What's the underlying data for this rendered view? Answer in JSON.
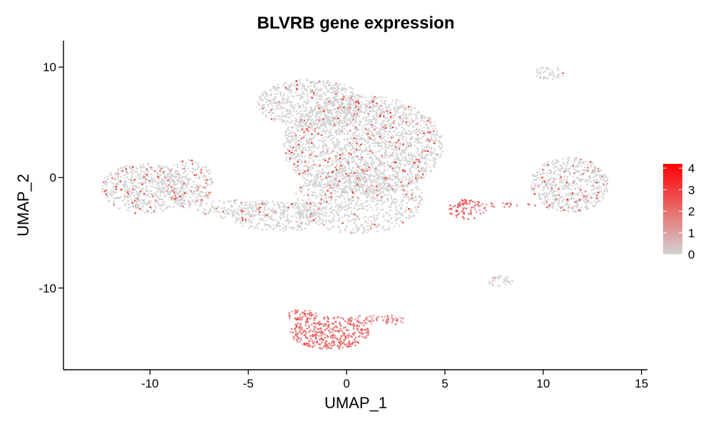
{
  "chart_data": {
    "type": "scatter",
    "title": "BLVRB gene expression",
    "xlabel": "UMAP_1",
    "ylabel": "UMAP_2",
    "xlim": [
      -14.4,
      15.3
    ],
    "ylim": [
      -17.4,
      12.4
    ],
    "xticks": [
      -10,
      -5,
      0,
      5,
      10,
      15
    ],
    "xtick_labels": [
      "-10",
      "-5",
      "0",
      "5",
      "10",
      "15"
    ],
    "yticks": [
      -10,
      0,
      10
    ],
    "ytick_labels": [
      "-10",
      "0",
      "10"
    ],
    "grid": false,
    "legend": {
      "placement": "right",
      "type": "colorbar",
      "min": 0,
      "max": 4.2,
      "ticks": [
        0,
        1,
        2,
        3,
        4
      ],
      "tick_labels": [
        "0",
        "1",
        "2",
        "3",
        "4"
      ],
      "low_color": "#d3d3d3",
      "high_color": "#ff0000"
    },
    "background_point_color": "#d3d3d3",
    "clusters": [
      {
        "name": "main-upper",
        "cx": 0.8,
        "cy": 3.0,
        "rx": 4.1,
        "ry": 4.5,
        "mean_expr": 0.25,
        "density": 0.9
      },
      {
        "name": "main-top-lobe",
        "cx": -1.9,
        "cy": 6.8,
        "rx": 2.7,
        "ry": 2.2,
        "mean_expr": 0.2,
        "density": 0.85
      },
      {
        "name": "main-center",
        "cx": 0.6,
        "cy": -2.0,
        "rx": 3.3,
        "ry": 3.0,
        "mean_expr": 0.15,
        "density": 0.6
      },
      {
        "name": "main-lower-left",
        "cx": -3.5,
        "cy": -3.4,
        "rx": 2.5,
        "ry": 1.4,
        "mean_expr": 0.25,
        "density": 0.75
      },
      {
        "name": "left-cluster",
        "cx": -10.3,
        "cy": -0.9,
        "rx": 2.2,
        "ry": 2.3,
        "mean_expr": 0.3,
        "density": 0.9
      },
      {
        "name": "left-right-lobe",
        "cx": -8.1,
        "cy": -0.5,
        "rx": 1.3,
        "ry": 2.2,
        "mean_expr": 0.25,
        "density": 0.75
      },
      {
        "name": "bridge",
        "cx": -5.8,
        "cy": -2.8,
        "rx": 1.9,
        "ry": 0.9,
        "mean_expr": 0.2,
        "density": 0.5
      },
      {
        "name": "right-cluster",
        "cx": 11.3,
        "cy": -0.6,
        "rx": 2.0,
        "ry": 2.5,
        "mean_expr": 0.3,
        "density": 0.9
      },
      {
        "name": "top-right-small",
        "cx": 10.3,
        "cy": 9.5,
        "rx": 0.8,
        "ry": 0.6,
        "mean_expr": 0.1,
        "density": 0.8
      },
      {
        "name": "mid-right-small",
        "cx": 7.8,
        "cy": -9.3,
        "rx": 0.7,
        "ry": 0.5,
        "mean_expr": 0.1,
        "density": 0.8
      },
      {
        "name": "red-streak",
        "cx": 6.1,
        "cy": -2.8,
        "rx": 1.0,
        "ry": 0.9,
        "mean_expr": 2.2,
        "density": 0.7
      },
      {
        "name": "red-tail",
        "cx": 8.1,
        "cy": -2.4,
        "rx": 1.6,
        "ry": 0.2,
        "mean_expr": 1.8,
        "density": 0.5
      },
      {
        "name": "bottom-red-main",
        "cx": -0.9,
        "cy": -14.0,
        "rx": 2.0,
        "ry": 1.5,
        "mean_expr": 2.0,
        "density": 0.95
      },
      {
        "name": "bottom-red-left",
        "cx": -2.3,
        "cy": -12.4,
        "rx": 0.8,
        "ry": 0.5,
        "mean_expr": 2.2,
        "density": 0.9
      },
      {
        "name": "bottom-tail",
        "cx": 1.6,
        "cy": -12.8,
        "rx": 1.6,
        "ry": 0.5,
        "mean_expr": 1.5,
        "density": 0.7
      }
    ]
  }
}
